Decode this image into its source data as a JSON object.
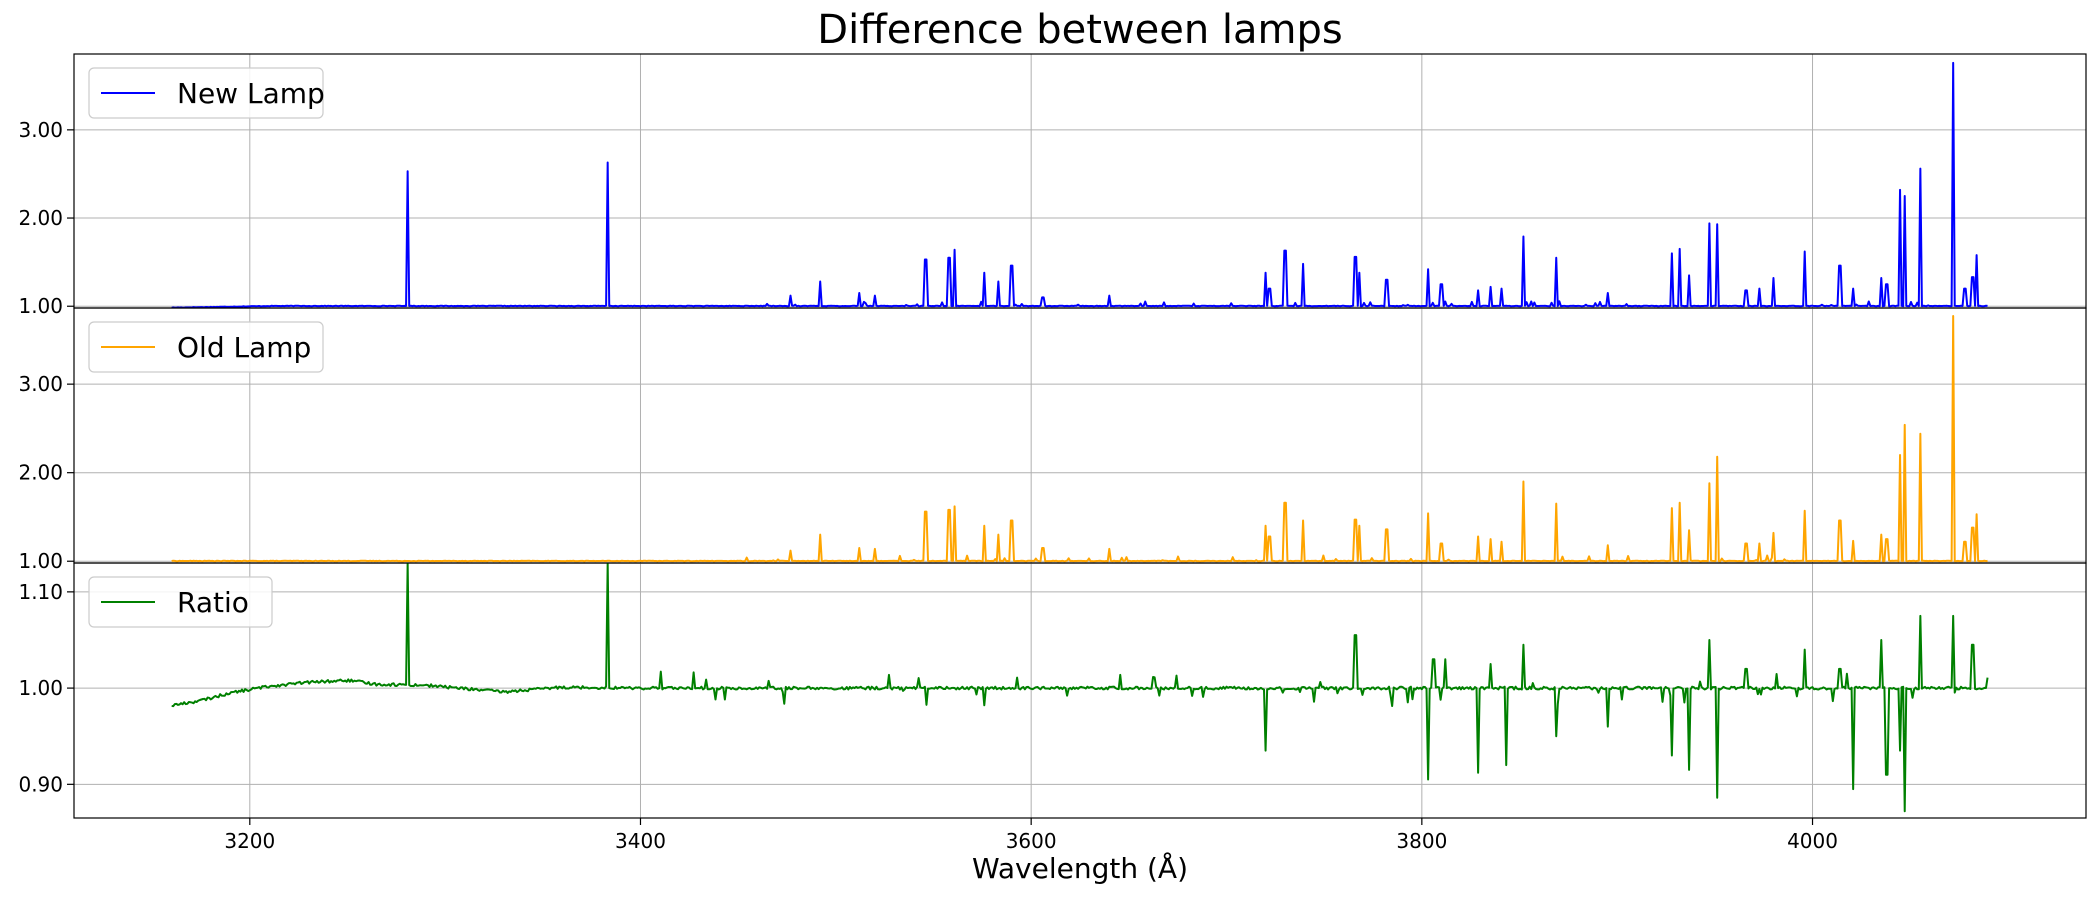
{
  "chart_data": {
    "type": "line",
    "title": "Difference between lamps",
    "xlabel": "Wavelength (Å)",
    "xlim": [
      3110,
      4140
    ],
    "x_ticks": [
      3200,
      3400,
      3600,
      3800,
      4000
    ],
    "x_tick_labels": [
      "3200",
      "3400",
      "3600",
      "3800",
      "4000"
    ],
    "x_range": [
      3160,
      4090
    ],
    "grid": true,
    "legend_placement": "upper-left",
    "panels": [
      {
        "id": "new",
        "series_name": "New Lamp",
        "color": "#0000ff",
        "ylim": [
          0.98,
          3.86
        ],
        "y_ticks": [
          1.0,
          2.0,
          3.0
        ],
        "y_tick_labels": [
          "1.00",
          "2.00",
          "3.00"
        ],
        "baseline_start": 0.98,
        "peaks": [
          [
            3281,
            2.53
          ],
          [
            3383,
            2.63
          ],
          [
            3477,
            1.12
          ],
          [
            3492,
            1.28
          ],
          [
            3512,
            1.15
          ],
          [
            3520,
            1.12
          ],
          [
            3546,
            1.53
          ],
          [
            3558,
            1.55
          ],
          [
            3561,
            1.64
          ],
          [
            3576,
            1.38
          ],
          [
            3583,
            1.28
          ],
          [
            3590,
            1.46
          ],
          [
            3606,
            1.1
          ],
          [
            3640,
            1.12
          ],
          [
            3720,
            1.38
          ],
          [
            3722,
            1.2
          ],
          [
            3730,
            1.63
          ],
          [
            3739,
            1.48
          ],
          [
            3766,
            1.56
          ],
          [
            3768,
            1.38
          ],
          [
            3782,
            1.3
          ],
          [
            3803,
            1.42
          ],
          [
            3810,
            1.25
          ],
          [
            3829,
            1.18
          ],
          [
            3835,
            1.22
          ],
          [
            3841,
            1.2
          ],
          [
            3852,
            1.79
          ],
          [
            3869,
            1.55
          ],
          [
            3895,
            1.15
          ],
          [
            3928,
            1.6
          ],
          [
            3932,
            1.65
          ],
          [
            3937,
            1.35
          ],
          [
            3947,
            1.94
          ],
          [
            3951,
            1.93
          ],
          [
            3966,
            1.18
          ],
          [
            3973,
            1.2
          ],
          [
            3980,
            1.32
          ],
          [
            3996,
            1.62
          ],
          [
            4014,
            1.46
          ],
          [
            4021,
            1.2
          ],
          [
            4035,
            1.32
          ],
          [
            4038,
            1.25
          ],
          [
            4045,
            2.32
          ],
          [
            4047,
            2.25
          ],
          [
            4055,
            2.56
          ],
          [
            4072,
            3.76
          ],
          [
            4078,
            1.2
          ],
          [
            4082,
            1.33
          ],
          [
            4084,
            1.58
          ]
        ]
      },
      {
        "id": "old",
        "series_name": "Old Lamp",
        "color": "#ffa500",
        "ylim": [
          0.98,
          3.86
        ],
        "y_ticks": [
          1.0,
          2.0,
          3.0
        ],
        "y_tick_labels": [
          "1.00",
          "2.00",
          "3.00"
        ],
        "baseline_start": 1.0,
        "peaks": [
          [
            3477,
            1.12
          ],
          [
            3492,
            1.3
          ],
          [
            3512,
            1.15
          ],
          [
            3520,
            1.14
          ],
          [
            3546,
            1.56
          ],
          [
            3558,
            1.58
          ],
          [
            3561,
            1.62
          ],
          [
            3576,
            1.4
          ],
          [
            3583,
            1.3
          ],
          [
            3590,
            1.46
          ],
          [
            3606,
            1.15
          ],
          [
            3640,
            1.14
          ],
          [
            3720,
            1.4
          ],
          [
            3722,
            1.28
          ],
          [
            3730,
            1.66
          ],
          [
            3739,
            1.46
          ],
          [
            3766,
            1.47
          ],
          [
            3768,
            1.4
          ],
          [
            3782,
            1.36
          ],
          [
            3803,
            1.54
          ],
          [
            3810,
            1.2
          ],
          [
            3829,
            1.28
          ],
          [
            3835,
            1.25
          ],
          [
            3841,
            1.22
          ],
          [
            3852,
            1.9
          ],
          [
            3869,
            1.65
          ],
          [
            3895,
            1.18
          ],
          [
            3928,
            1.6
          ],
          [
            3932,
            1.66
          ],
          [
            3937,
            1.35
          ],
          [
            3947,
            1.88
          ],
          [
            3951,
            2.18
          ],
          [
            3966,
            1.2
          ],
          [
            3973,
            1.2
          ],
          [
            3980,
            1.32
          ],
          [
            3996,
            1.57
          ],
          [
            4014,
            1.46
          ],
          [
            4021,
            1.23
          ],
          [
            4035,
            1.3
          ],
          [
            4038,
            1.25
          ],
          [
            4045,
            2.2
          ],
          [
            4047,
            2.54
          ],
          [
            4055,
            2.44
          ],
          [
            4072,
            3.77
          ],
          [
            4078,
            1.22
          ],
          [
            4082,
            1.38
          ],
          [
            4084,
            1.53
          ]
        ]
      },
      {
        "id": "ratio",
        "series_name": "Ratio",
        "color": "#008000",
        "ylim": [
          0.865,
          1.13
        ],
        "y_ticks": [
          0.9,
          1.0,
          1.1
        ],
        "y_tick_labels": [
          "0.90",
          "1.00",
          "1.10"
        ],
        "trend": [
          [
            3160,
            0.982
          ],
          [
            3175,
            0.987
          ],
          [
            3190,
            0.995
          ],
          [
            3210,
            1.002
          ],
          [
            3230,
            1.006
          ],
          [
            3250,
            1.008
          ],
          [
            3265,
            1.004
          ],
          [
            3290,
            1.003
          ],
          [
            3330,
            0.996
          ],
          [
            3360,
            1.001
          ],
          [
            3400,
            1.0
          ],
          [
            4090,
            1.0
          ]
        ],
        "spikes": [
          [
            3281,
            1.13
          ],
          [
            3383,
            1.13
          ],
          [
            3720,
            0.935
          ],
          [
            3766,
            1.055
          ],
          [
            3803,
            0.905
          ],
          [
            3806,
            1.03
          ],
          [
            3812,
            1.03
          ],
          [
            3829,
            0.912
          ],
          [
            3835,
            1.025
          ],
          [
            3843,
            0.92
          ],
          [
            3852,
            1.045
          ],
          [
            3869,
            0.95
          ],
          [
            3895,
            0.96
          ],
          [
            3928,
            0.93
          ],
          [
            3937,
            0.915
          ],
          [
            3947,
            1.05
          ],
          [
            3951,
            0.886
          ],
          [
            3966,
            1.02
          ],
          [
            3996,
            1.04
          ],
          [
            4014,
            1.02
          ],
          [
            4021,
            0.895
          ],
          [
            4035,
            1.05
          ],
          [
            4038,
            0.91
          ],
          [
            4045,
            0.935
          ],
          [
            4047,
            0.872
          ],
          [
            4055,
            1.075
          ],
          [
            4072,
            1.075
          ],
          [
            4082,
            1.045
          ]
        ]
      }
    ]
  }
}
